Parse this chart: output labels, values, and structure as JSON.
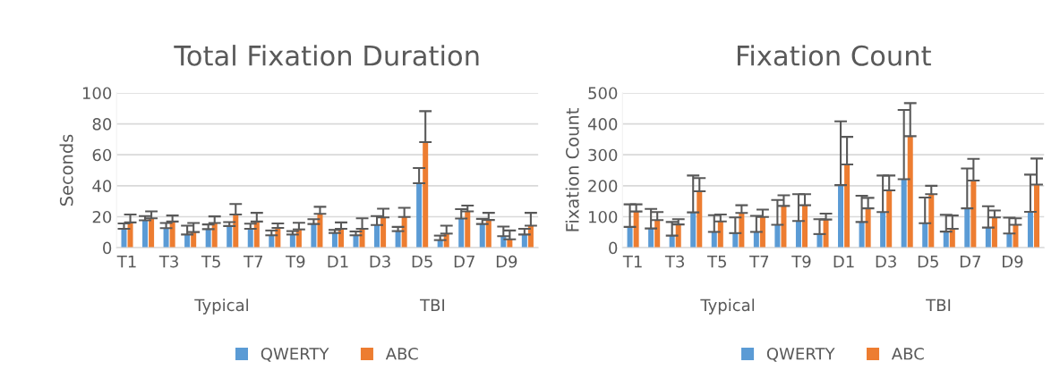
{
  "chart_data": [
    {
      "type": "bar",
      "title": "Total Fixation Duration",
      "ylabel": "Seconds",
      "categories": [
        "T1",
        null,
        "T3",
        null,
        "T5",
        null,
        "T7",
        null,
        "T9",
        null,
        "D1",
        null,
        "D3",
        null,
        "D5",
        null,
        "D7",
        null,
        "D9",
        null
      ],
      "series": [
        {
          "name": "QWERTY",
          "color": "#5b9bd5",
          "values": [
            12.2,
            17.7,
            12.6,
            8.5,
            12,
            14,
            12.2,
            8,
            8.5,
            15.3,
            9.5,
            8,
            14.6,
            10.7,
            41.6,
            4.9,
            18.8,
            15.3,
            7.4,
            8.5
          ],
          "errors": [
            [
              12.2,
              15.7
            ],
            [
              17.7,
              20.4
            ],
            [
              12.6,
              15.9
            ],
            [
              8.5,
              14.2
            ],
            [
              12,
              15
            ],
            [
              14,
              16.5
            ],
            [
              12.2,
              15.5
            ],
            [
              8,
              11.1
            ],
            [
              8.5,
              10.7
            ],
            [
              15.3,
              18.4
            ],
            [
              9.5,
              11.5
            ],
            [
              8,
              10.5
            ],
            [
              14.6,
              20.4
            ],
            [
              10.7,
              13.4
            ],
            [
              41.6,
              51.5
            ],
            [
              4.9,
              7.8
            ],
            [
              18.8,
              24.9
            ],
            [
              15.3,
              18.6
            ],
            [
              7.4,
              13.6
            ],
            [
              8.5,
              12.2
            ]
          ]
        },
        {
          "name": "ABC",
          "color": "#ed7d31",
          "values": [
            16.3,
            19,
            16.9,
            10.1,
            15.9,
            21.4,
            16.9,
            12.8,
            11.8,
            21.9,
            12.2,
            12.2,
            19.6,
            19.8,
            68.2,
            9.1,
            23.5,
            17.9,
            5.4,
            14.2
          ],
          "errors": [
            [
              16.3,
              21.4
            ],
            [
              19,
              23.5
            ],
            [
              16.9,
              20.8
            ],
            [
              10.1,
              15.9
            ],
            [
              15.9,
              20.2
            ],
            [
              21.4,
              28.2
            ],
            [
              16.9,
              22.5
            ],
            [
              12.8,
              15.7
            ],
            [
              11.8,
              16.1
            ],
            [
              21.9,
              26.4
            ],
            [
              12.2,
              16.3
            ],
            [
              12.2,
              19
            ],
            [
              19.6,
              25.2
            ],
            [
              19.8,
              25.8
            ],
            [
              68.2,
              88.2
            ],
            [
              9.1,
              14.2
            ],
            [
              23.5,
              27.2
            ],
            [
              17.9,
              22.5
            ],
            [
              5.4,
              11.1
            ],
            [
              14.2,
              22.5
            ]
          ]
        }
      ],
      "ylim": [
        0,
        100
      ],
      "yticks": [
        0,
        20,
        40,
        60,
        80,
        100
      ],
      "grid": "y",
      "legend": "bottom",
      "annotations": [
        "Typical",
        "TBI"
      ]
    },
    {
      "type": "bar",
      "title": "Fixation Count",
      "ylabel": "Fixation Count",
      "categories": [
        "T1",
        null,
        "T3",
        null,
        "T5",
        null,
        "T7",
        null,
        "T9",
        null,
        "D1",
        null,
        "D3",
        null,
        "D5",
        null,
        "D7",
        null,
        "D9",
        null
      ],
      "series": [
        {
          "name": "QWERTY",
          "color": "#5b9bd5",
          "values": [
            67,
            62,
            39,
            114,
            51,
            47,
            51,
            74,
            86,
            44,
            202,
            83,
            115,
            221,
            79,
            52,
            127,
            65,
            46,
            116
          ],
          "errors": [
            [
              67,
              140
            ],
            [
              62,
              125
            ],
            [
              39,
              83
            ],
            [
              114,
              233
            ],
            [
              51,
              105
            ],
            [
              47,
              98
            ],
            [
              51,
              103
            ],
            [
              74,
              154
            ],
            [
              86,
              173
            ],
            [
              44,
              92
            ],
            [
              202,
              408
            ],
            [
              83,
              168
            ],
            [
              115,
              233
            ],
            [
              221,
              445
            ],
            [
              79,
              162
            ],
            [
              52,
              106
            ],
            [
              127,
              256
            ],
            [
              65,
              134
            ],
            [
              46,
              97
            ],
            [
              116,
              236
            ]
          ]
        },
        {
          "name": "ABC",
          "color": "#ed7d31",
          "values": [
            117,
            89,
            75,
            182,
            85,
            112,
            99,
            135,
            137,
            91,
            269,
            127,
            185,
            360,
            173,
            61,
            217,
            98,
            74,
            204
          ],
          "errors": [
            [
              117,
              140
            ],
            [
              89,
              115
            ],
            [
              75,
              92
            ],
            [
              182,
              225
            ],
            [
              85,
              107
            ],
            [
              112,
              137
            ],
            [
              99,
              123
            ],
            [
              135,
              169
            ],
            [
              137,
              173
            ],
            [
              91,
              110
            ],
            [
              269,
              358
            ],
            [
              127,
              161
            ],
            [
              185,
              233
            ],
            [
              360,
              467
            ],
            [
              173,
              200
            ],
            [
              61,
              104
            ],
            [
              217,
              287
            ],
            [
              98,
              120
            ],
            [
              74,
              95
            ],
            [
              204,
              288
            ]
          ]
        }
      ],
      "ylim": [
        0,
        500
      ],
      "yticks": [
        0,
        100,
        200,
        300,
        400,
        500
      ],
      "grid": "y",
      "legend": "bottom",
      "annotations": [
        "Typical",
        "TBI"
      ]
    }
  ]
}
